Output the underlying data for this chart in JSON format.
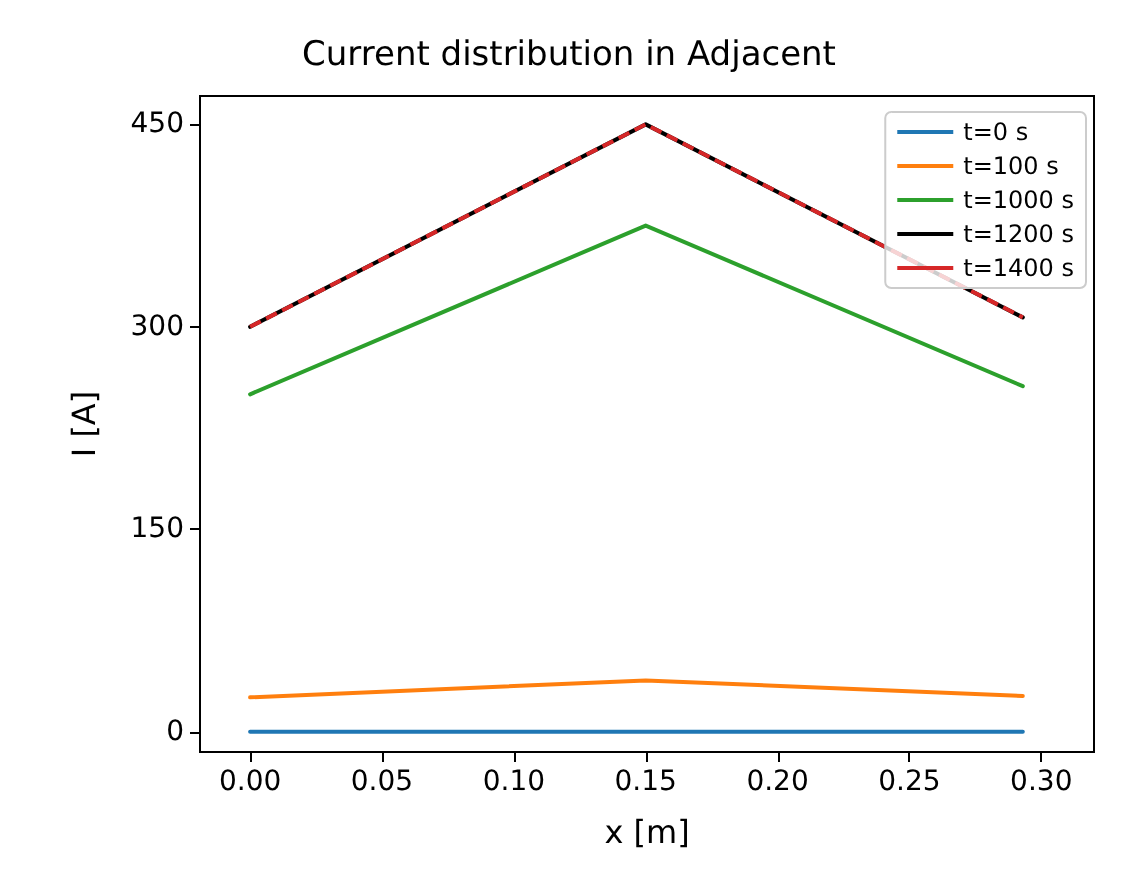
{
  "chart_data": {
    "type": "line",
    "title": "Current distribution in Adjacent",
    "xlabel": "x [m]",
    "ylabel": "I [A]",
    "x": [
      0,
      0.15,
      0.293
    ],
    "series": [
      {
        "name": "t=0 s",
        "color": "#1f77b4",
        "values": [
          0,
          0,
          0
        ]
      },
      {
        "name": "t=100 s",
        "color": "#ff7f0e",
        "values": [
          25.5,
          38,
          26.5
        ]
      },
      {
        "name": "t=1000 s",
        "color": "#2ca02c",
        "values": [
          250,
          375,
          256
        ]
      },
      {
        "name": "t=1200 s",
        "color": "#000000",
        "values": [
          300,
          450,
          307
        ]
      },
      {
        "name": "t=1400 s",
        "color": "#d62728",
        "values": [
          300,
          450,
          307
        ],
        "line_style": "dashed"
      }
    ],
    "xlim": [
      -0.019,
      0.32
    ],
    "ylim": [
      -15,
      471
    ],
    "xticks": [
      {
        "value": 0,
        "label": "0.00"
      },
      0.05,
      {
        "value": 0.1,
        "label": "0.10"
      },
      0.15,
      {
        "value": 0.2,
        "label": "0.20"
      },
      0.25,
      {
        "value": 0.3,
        "label": "0.30"
      }
    ],
    "yticks": [
      0,
      150,
      300,
      450
    ],
    "grid": false,
    "legend": "top right",
    "marker": "none",
    "line_style": "solid"
  }
}
